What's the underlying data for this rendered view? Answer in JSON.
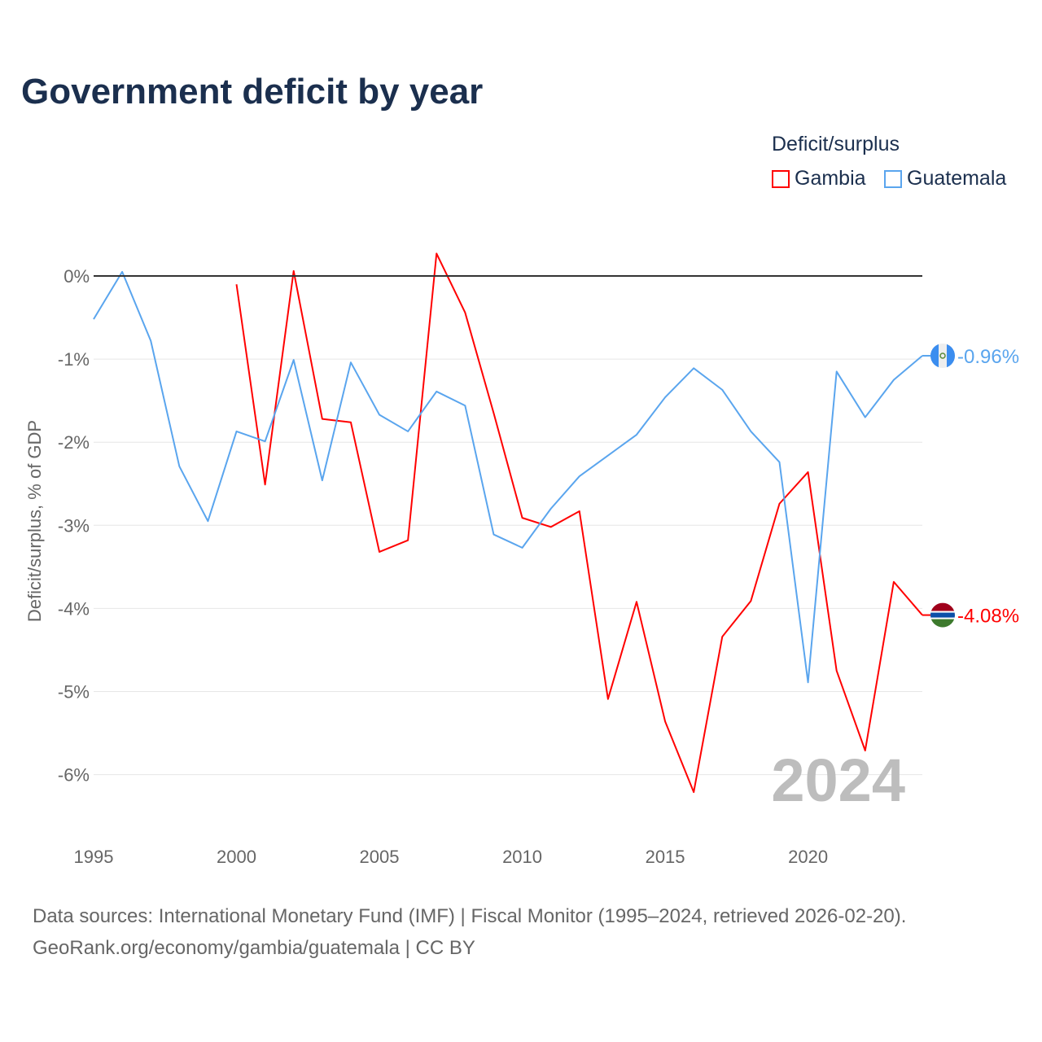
{
  "chart_data": {
    "type": "line",
    "title": "Government deficit by year",
    "ylabel": "Deficit/surplus, % of GDP",
    "xlabel": "",
    "xlim": [
      1995,
      2024
    ],
    "ylim": [
      -6.6,
      0.4
    ],
    "x_ticks": [
      1995,
      2000,
      2005,
      2010,
      2015,
      2020
    ],
    "x_tick_labels": [
      "1995",
      "2000",
      "2005",
      "2010",
      "2015",
      "2020"
    ],
    "y_ticks": [
      0,
      -1,
      -2,
      -3,
      -4,
      -5,
      -6
    ],
    "y_tick_labels": [
      "0%",
      "-1%",
      "-2%",
      "-3%",
      "-4%",
      "-5%",
      "-6%"
    ],
    "legend_title": "Deficit/surplus",
    "legend_position": "top-right",
    "year_watermark": "2024",
    "series": [
      {
        "name": "Gambia",
        "color": "#ff0000",
        "end_label": "-4.08%",
        "flag": "gambia-flag",
        "x": [
          2000,
          2001,
          2002,
          2003,
          2004,
          2005,
          2006,
          2007,
          2008,
          2009,
          2010,
          2011,
          2012,
          2013,
          2014,
          2015,
          2016,
          2017,
          2018,
          2019,
          2020,
          2021,
          2022,
          2023,
          2024
        ],
        "values": [
          -0.1,
          -2.51,
          0.06,
          -1.72,
          -1.76,
          -3.32,
          -3.18,
          0.27,
          -0.44,
          -1.65,
          -2.91,
          -3.02,
          -2.83,
          -5.09,
          -3.92,
          -5.36,
          -6.21,
          -4.34,
          -3.91,
          -2.74,
          -2.36,
          -4.75,
          -5.71,
          -3.68,
          -4.08
        ]
      },
      {
        "name": "Guatemala",
        "color": "#5aa5ee",
        "end_label": "-0.96%",
        "flag": "guatemala-flag",
        "x": [
          1995,
          1996,
          1997,
          1998,
          1999,
          2000,
          2001,
          2002,
          2003,
          2004,
          2005,
          2006,
          2007,
          2008,
          2009,
          2010,
          2011,
          2012,
          2013,
          2014,
          2015,
          2016,
          2017,
          2018,
          2019,
          2020,
          2021,
          2022,
          2023,
          2024
        ],
        "values": [
          -0.52,
          0.05,
          -0.78,
          -2.29,
          -2.95,
          -1.87,
          -1.99,
          -1.01,
          -2.46,
          -1.04,
          -1.67,
          -1.87,
          -1.39,
          -1.56,
          -3.11,
          -3.27,
          -2.8,
          -2.41,
          -2.16,
          -1.91,
          -1.46,
          -1.11,
          -1.37,
          -1.87,
          -2.24,
          -4.89,
          -1.15,
          -1.7,
          -1.25,
          -0.96
        ]
      }
    ]
  },
  "footer": {
    "line1": "Data sources: International Monetary Fund (IMF) | Fiscal Monitor (1995–2024, retrieved 2026-02-20).",
    "line2": "GeoRank.org/economy/gambia/guatemala | CC BY"
  }
}
